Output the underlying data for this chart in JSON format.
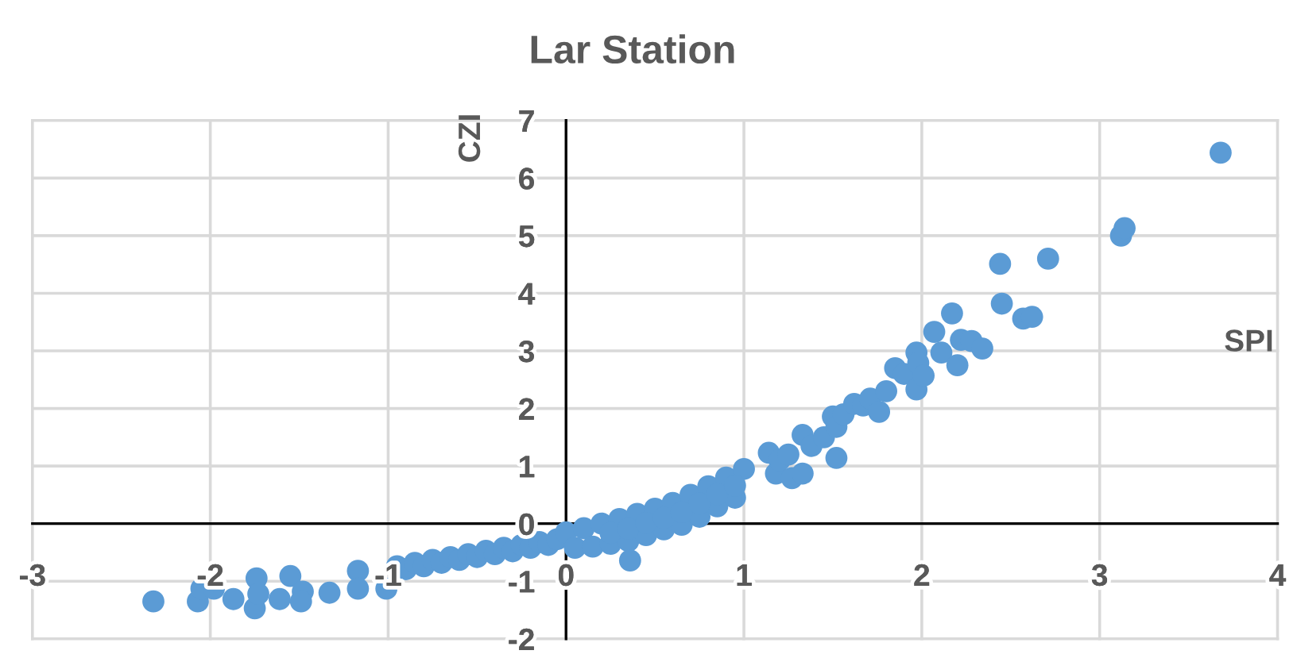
{
  "chart_data": {
    "type": "scatter",
    "title": "Lar Station",
    "xlabel": "SPI",
    "ylabel": "CZI",
    "x": [
      -2.32,
      -2.07,
      -2.05,
      -1.98,
      -1.87,
      -1.74,
      -1.75,
      -1.73,
      -1.61,
      -1.55,
      -1.48,
      -1.49,
      -1.33,
      -1.17,
      -1.17,
      -1.01,
      -0.95,
      -0.9,
      -0.85,
      -0.8,
      -0.75,
      -0.7,
      -0.65,
      -0.6,
      -0.55,
      -0.5,
      -0.45,
      -0.4,
      -0.35,
      -0.3,
      -0.25,
      -0.2,
      -0.15,
      -0.1,
      -0.05,
      0.0,
      0.1,
      0.2,
      0.3,
      0.4,
      0.5,
      0.6,
      0.7,
      0.8,
      0.9,
      1.0,
      0.05,
      0.15,
      0.25,
      0.35,
      0.45,
      0.55,
      0.65,
      0.75,
      0.85,
      0.95,
      0.36,
      1.14,
      1.18,
      1.2,
      1.25,
      1.27,
      1.33,
      1.33,
      1.38,
      1.45,
      1.5,
      1.52,
      1.52,
      1.56,
      1.62,
      1.67,
      1.71,
      1.76,
      1.8,
      1.85,
      1.9,
      1.97,
      1.98,
      1.97,
      2.01,
      2.07,
      2.11,
      2.17,
      2.2,
      2.22,
      2.28,
      2.34,
      2.44,
      2.45,
      2.57,
      2.62,
      2.71,
      3.12,
      3.14,
      3.68,
      0.25,
      0.35,
      0.45,
      0.55,
      0.65,
      0.75,
      0.85,
      0.95
    ],
    "values": [
      -1.35,
      -1.35,
      -1.13,
      -1.13,
      -1.31,
      -0.95,
      -1.47,
      -1.22,
      -1.31,
      -0.91,
      -1.18,
      -1.35,
      -1.2,
      -0.82,
      -1.13,
      -1.13,
      -0.74,
      -0.79,
      -0.68,
      -0.74,
      -0.63,
      -0.68,
      -0.58,
      -0.63,
      -0.53,
      -0.58,
      -0.47,
      -0.53,
      -0.42,
      -0.48,
      -0.37,
      -0.42,
      -0.32,
      -0.37,
      -0.27,
      -0.15,
      -0.08,
      0.0,
      0.08,
      0.17,
      0.26,
      0.36,
      0.5,
      0.65,
      0.8,
      0.95,
      -0.42,
      -0.4,
      -0.35,
      -0.3,
      -0.2,
      -0.1,
      -0.02,
      0.12,
      0.3,
      0.45,
      -0.64,
      1.23,
      0.87,
      1.1,
      1.2,
      0.79,
      0.87,
      1.54,
      1.35,
      1.5,
      1.86,
      1.68,
      1.14,
      1.9,
      2.08,
      2.05,
      2.17,
      1.94,
      2.3,
      2.7,
      2.6,
      2.97,
      2.79,
      2.33,
      2.57,
      3.33,
      2.97,
      3.65,
      2.75,
      3.19,
      3.17,
      3.04,
      4.51,
      3.82,
      3.56,
      3.59,
      4.6,
      5.0,
      5.13,
      6.44,
      -0.16,
      -0.09,
      0.01,
      0.1,
      0.2,
      0.35,
      0.51,
      0.66
    ],
    "color": "#5b9bd5",
    "marker": "circle",
    "xlim": [
      -3,
      4
    ],
    "ylim": [
      -2,
      7
    ],
    "xticks": [
      -3,
      -2,
      -1,
      0,
      1,
      2,
      3,
      4
    ],
    "yticks": [
      -2,
      -1,
      0,
      1,
      2,
      3,
      4,
      5,
      6,
      7
    ],
    "grid": true
  }
}
